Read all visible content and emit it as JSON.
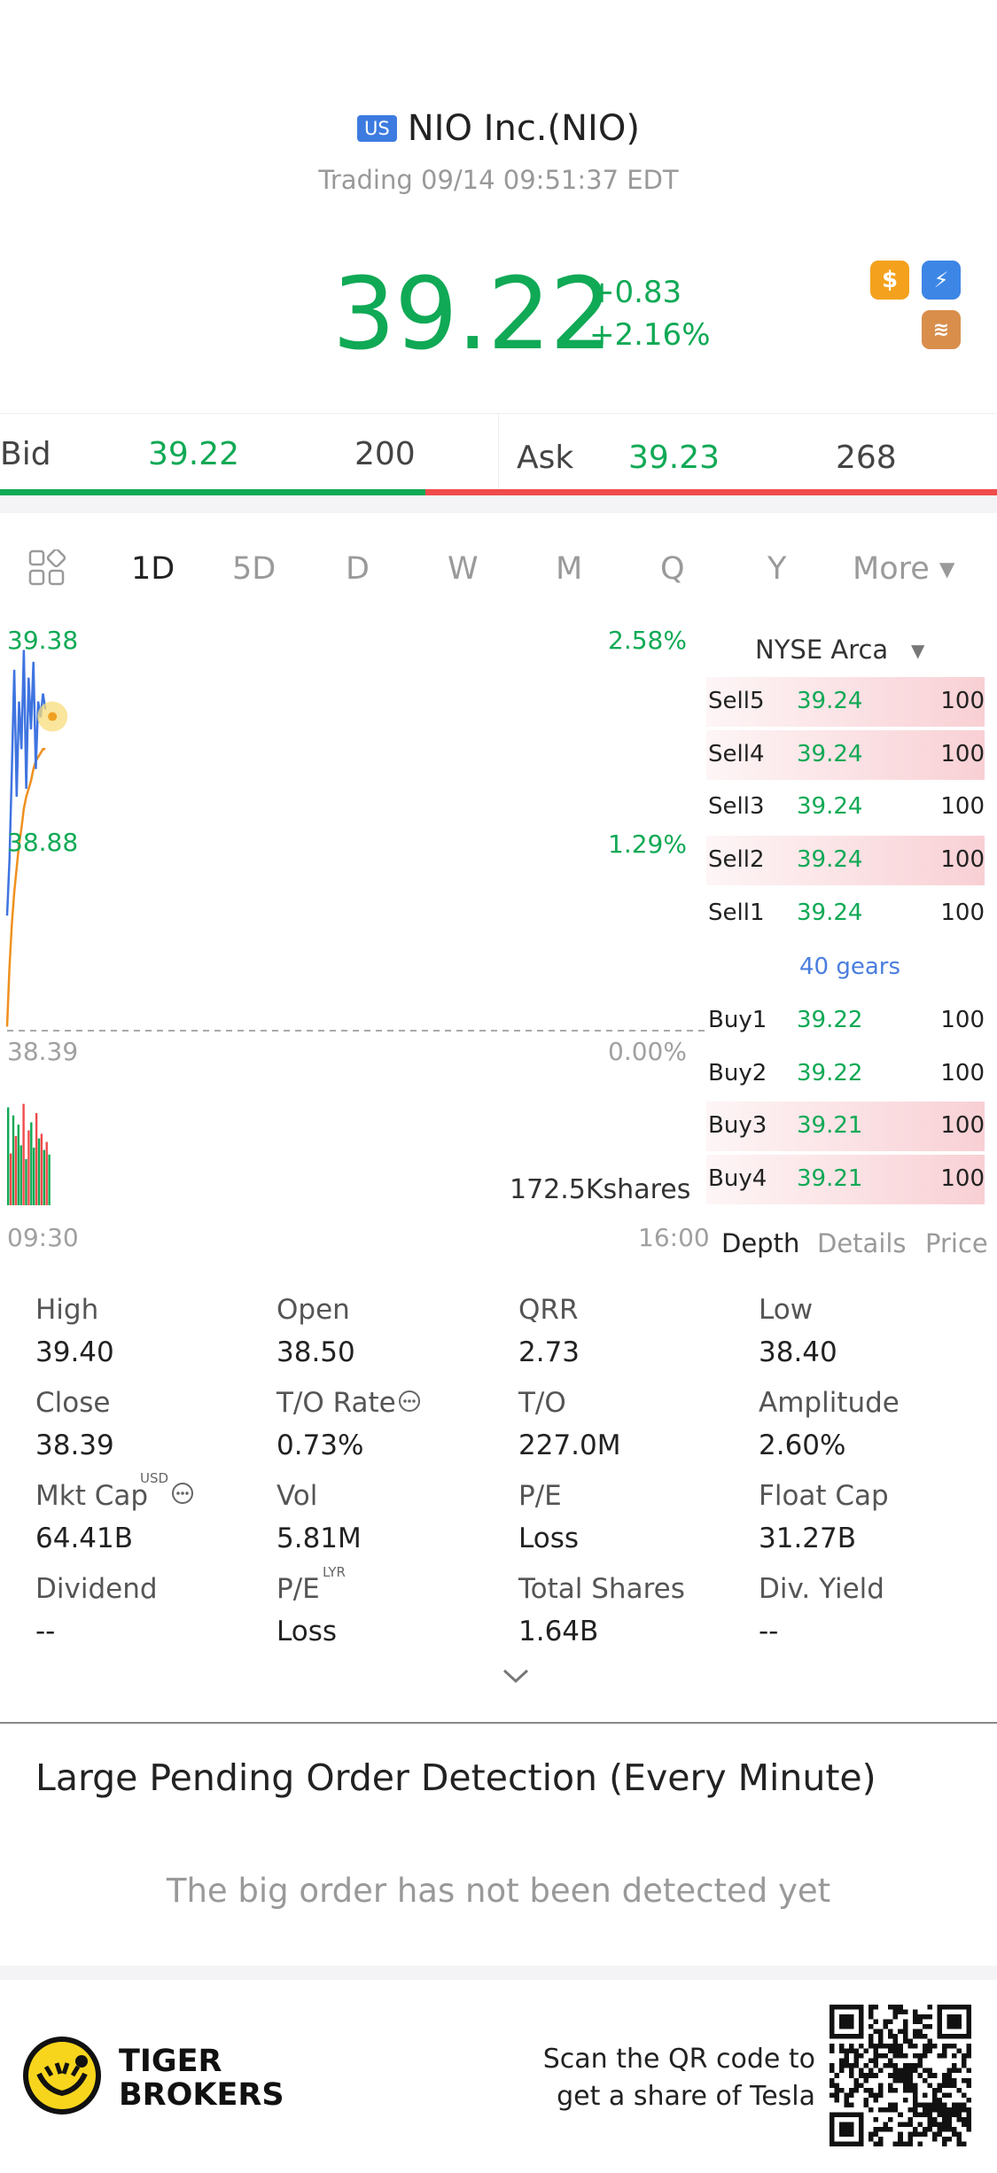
{
  "header": {
    "flag": "US",
    "title": "NIO Inc.(NIO)",
    "status": "Trading 09/14 09:51:37 EDT"
  },
  "quote": {
    "price": "39.22",
    "change": "+0.83",
    "change_pct": "+2.16%",
    "badge_dollar": "$",
    "badge_bolt": "⚡",
    "badge_stack": "≋",
    "color_up": "#10a955",
    "color_down": "#ef4b4b"
  },
  "bidask": {
    "bid_label": "Bid",
    "bid_price": "39.22",
    "bid_size": "200",
    "ask_label": "Ask",
    "ask_price": "39.23",
    "ask_size": "268",
    "bid_share_pct": 42.7
  },
  "tabs": [
    "1D",
    "5D",
    "D",
    "W",
    "M",
    "Q",
    "Y",
    "More ▾"
  ],
  "chart": {
    "y_top": "39.38",
    "y_mid": "38.88",
    "y_base": "38.39",
    "pct_top": "2.58%",
    "pct_mid": "1.29%",
    "pct_base": "0.00%",
    "volume": "172.5Kshares",
    "time_start": "09:30",
    "time_end": "16:00"
  },
  "chart_data": {
    "type": "line",
    "ylim": [
      38.39,
      39.38
    ],
    "series": [
      {
        "values": [
          38.68,
          38.82,
          39.05,
          39.3,
          38.98,
          39.22,
          39.1,
          39.35,
          39.0,
          39.28,
          39.15,
          39.32,
          39.05,
          39.22,
          39.18,
          39.24,
          39.2
        ]
      },
      {
        "values": [
          38.4,
          38.55,
          38.66,
          38.74,
          38.8,
          38.86,
          38.9,
          38.95,
          38.98,
          39.0,
          39.02,
          39.05,
          39.07,
          39.08,
          39.09,
          39.1,
          39.1
        ]
      }
    ],
    "volume_bars": [
      85,
      45,
      78,
      60,
      70,
      52,
      88,
      40,
      65,
      72,
      50,
      80,
      58,
      62,
      48,
      55,
      44
    ],
    "volume_colors": [
      "g",
      "r",
      "g",
      "r",
      "g",
      "g",
      "r",
      "g",
      "r",
      "g",
      "g",
      "r",
      "g",
      "r",
      "g",
      "r",
      "g"
    ]
  },
  "depth": {
    "exchange": "NYSE Arca",
    "gears": "40 gears",
    "sells": [
      {
        "label": "Sell5",
        "price": "39.24",
        "qty": "100",
        "shaded": true
      },
      {
        "label": "Sell4",
        "price": "39.24",
        "qty": "100",
        "shaded": true
      },
      {
        "label": "Sell3",
        "price": "39.24",
        "qty": "100",
        "shaded": false
      },
      {
        "label": "Sell2",
        "price": "39.24",
        "qty": "100",
        "shaded": true
      },
      {
        "label": "Sell1",
        "price": "39.24",
        "qty": "100",
        "shaded": false
      }
    ],
    "buys": [
      {
        "label": "Buy1",
        "price": "39.22",
        "qty": "100",
        "shaded": false
      },
      {
        "label": "Buy2",
        "price": "39.22",
        "qty": "100",
        "shaded": false
      },
      {
        "label": "Buy3",
        "price": "39.21",
        "qty": "100",
        "shaded": true
      },
      {
        "label": "Buy4",
        "price": "39.21",
        "qty": "100",
        "shaded": true
      }
    ],
    "tabs": {
      "depth": "Depth",
      "details": "Details",
      "price": "Price"
    }
  },
  "stats": [
    {
      "label": "High",
      "value": "39.40"
    },
    {
      "label": "Open",
      "value": "38.50"
    },
    {
      "label": "QRR",
      "value": "2.73"
    },
    {
      "label": "Low",
      "value": "38.40"
    },
    {
      "label": "Close",
      "value": "38.39"
    },
    {
      "label": "T/O Rate",
      "value": "0.73%"
    },
    {
      "label": "T/O",
      "value": "227.0M"
    },
    {
      "label": "Amplitude",
      "value": "2.60%"
    },
    {
      "label": "Mkt Cap",
      "value": "64.41B"
    },
    {
      "label": "Vol",
      "value": "5.81M"
    },
    {
      "label": "P/E",
      "value": "Loss"
    },
    {
      "label": "Float Cap",
      "value": "31.27B"
    },
    {
      "label": "Dividend",
      "value": "--"
    },
    {
      "label": "P/E",
      "value": "Loss"
    },
    {
      "label": "Total Shares",
      "value": "1.64B"
    },
    {
      "label": "Div. Yield",
      "value": "--"
    }
  ],
  "stat_sups": {
    "mkt_cap": "USD",
    "pe_lyr": "LYR"
  },
  "large_order": {
    "title": "Large Pending Order Detection (Every Minute)",
    "empty": "The big order has not been detected yet"
  },
  "footer": {
    "brand_line1": "TIGER",
    "brand_line2": "BROKERS",
    "promo_line1": "Scan the QR code to",
    "promo_line2": "get a share of Tesla"
  }
}
